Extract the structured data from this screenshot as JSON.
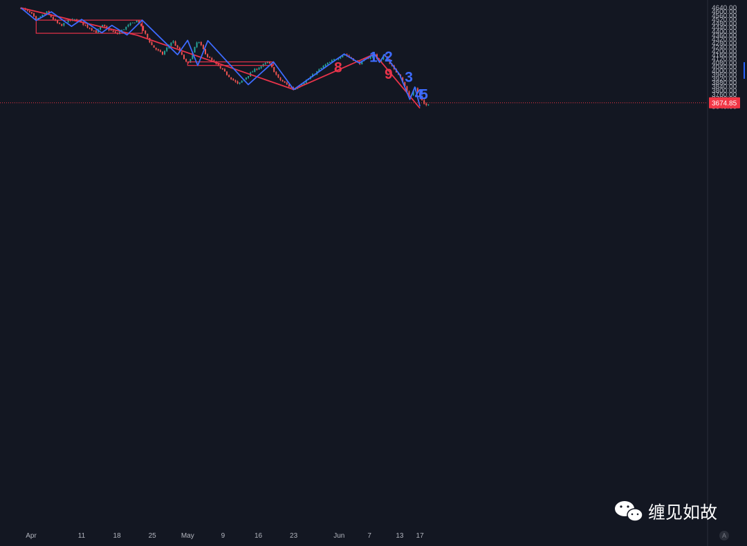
{
  "watermark": {
    "text": "缠见如故",
    "icon": "wechat-icon"
  },
  "axis_mode": "A",
  "colors": {
    "background": "#131722",
    "up": "#26a69a",
    "down": "#ef5350",
    "red_line": "#e8334a",
    "blue_line": "#3d6bff",
    "price_label": "#f23645",
    "label_red": "#e8334a",
    "label_blue": "#3d6bff"
  },
  "chart_data": {
    "type": "candlestick",
    "title": "",
    "ylabel": "",
    "y_ticks": [
      3640,
      3680,
      3720,
      3760,
      3800,
      3840,
      3880,
      3920,
      3960,
      4000,
      4040,
      4080,
      4120,
      4160,
      4200,
      4240,
      4280,
      4320,
      4360,
      4400,
      4440,
      4480,
      4520,
      4560,
      4600,
      4640
    ],
    "x_ticks": [
      {
        "label": "Apr",
        "x": "2022-04-01"
      },
      {
        "label": "11",
        "x": "2022-04-11"
      },
      {
        "label": "18",
        "x": "2022-04-18"
      },
      {
        "label": "25",
        "x": "2022-04-25"
      },
      {
        "label": "May",
        "x": "2022-05-02"
      },
      {
        "label": "9",
        "x": "2022-05-09"
      },
      {
        "label": "16",
        "x": "2022-05-16"
      },
      {
        "label": "23",
        "x": "2022-05-23"
      },
      {
        "label": "Jun",
        "x": "2022-06-01"
      },
      {
        "label": "7",
        "x": "2022-06-07"
      },
      {
        "label": "13",
        "x": "2022-06-13"
      },
      {
        "label": "17",
        "x": "2022-06-17"
      }
    ],
    "last_price": {
      "label": "3674.85",
      "value": 3674.85
    },
    "price_path": [
      [
        "2022-03-30",
        4637
      ],
      [
        "2022-04-01",
        4580
      ],
      [
        "2022-04-02",
        4510
      ],
      [
        "2022-04-04",
        4597
      ],
      [
        "2022-04-06",
        4490
      ],
      [
        "2022-04-07",
        4450
      ],
      [
        "2022-04-08",
        4505
      ],
      [
        "2022-04-10",
        4520
      ],
      [
        "2022-04-12",
        4450
      ],
      [
        "2022-04-14",
        4390
      ],
      [
        "2022-04-15",
        4460
      ],
      [
        "2022-04-18",
        4370
      ],
      [
        "2022-04-20",
        4450
      ],
      [
        "2022-04-22",
        4513
      ],
      [
        "2022-04-25",
        4250
      ],
      [
        "2022-04-27",
        4166
      ],
      [
        "2022-04-29",
        4307
      ],
      [
        "2022-05-02",
        4060
      ],
      [
        "2022-05-04",
        4305
      ],
      [
        "2022-05-06",
        4140
      ],
      [
        "2022-05-09",
        4000
      ],
      [
        "2022-05-12",
        3860
      ],
      [
        "2022-05-15",
        4000
      ],
      [
        "2022-05-18",
        4090
      ],
      [
        "2022-05-20",
        3920
      ],
      [
        "2022-05-23",
        3810
      ],
      [
        "2022-05-26",
        3920
      ],
      [
        "2022-05-29",
        4050
      ],
      [
        "2022-06-02",
        4170
      ],
      [
        "2022-06-05",
        4075
      ],
      [
        "2022-06-08",
        4170
      ],
      [
        "2022-06-09",
        4085
      ],
      [
        "2022-06-10",
        4165
      ],
      [
        "2022-06-12",
        4000
      ],
      [
        "2022-06-13",
        3960
      ],
      [
        "2022-06-15",
        3720
      ],
      [
        "2022-06-16",
        3835
      ],
      [
        "2022-06-18",
        3640
      ],
      [
        "2022-06-19",
        3680
      ]
    ],
    "series": [
      {
        "color": "#e8334a",
        "points": [
          [
            "2022-03-30",
            4637
          ],
          [
            "2022-04-22",
            4360
          ],
          [
            "2022-05-23",
            3810
          ],
          [
            "2022-06-08",
            4170
          ],
          [
            "2022-06-17",
            3620
          ]
        ]
      },
      {
        "color": "#3d6bff",
        "points": [
          [
            "2022-03-30",
            4637
          ],
          [
            "2022-04-02",
            4510
          ],
          [
            "2022-04-05",
            4597
          ],
          [
            "2022-04-09",
            4450
          ],
          [
            "2022-04-11",
            4520
          ],
          [
            "2022-04-15",
            4385
          ],
          [
            "2022-04-17",
            4460
          ],
          [
            "2022-04-20",
            4363
          ],
          [
            "2022-04-23",
            4513
          ],
          [
            "2022-04-30",
            4163
          ],
          [
            "2022-05-02",
            4308
          ],
          [
            "2022-05-04",
            4054
          ],
          [
            "2022-05-06",
            4305
          ],
          [
            "2022-05-14",
            3860
          ],
          [
            "2022-05-19",
            4090
          ],
          [
            "2022-05-23",
            3810
          ],
          [
            "2022-06-02",
            4170
          ],
          [
            "2022-06-05",
            4078
          ],
          [
            "2022-06-08",
            4170
          ],
          [
            "2022-06-09",
            4085
          ],
          [
            "2022-06-10",
            4165
          ],
          [
            "2022-06-13",
            3960
          ],
          [
            "2022-06-15",
            3710
          ],
          [
            "2022-06-16",
            3835
          ],
          [
            "2022-06-17",
            3640
          ]
        ]
      }
    ],
    "boxes": [
      {
        "x0": "2022-04-02",
        "x1": "2022-04-23",
        "y0": 4380,
        "y1": 4513
      },
      {
        "x0": "2022-05-02",
        "x1": "2022-05-19",
        "y0": 4054,
        "y1": 4090
      }
    ],
    "wave_labels": [
      {
        "text": "8",
        "x": "2022-05-31",
        "y": 3985,
        "color": "#e8334a"
      },
      {
        "text": "9",
        "x": "2022-06-10",
        "y": 3920,
        "color": "#e8334a"
      },
      {
        "text": "1",
        "x": "2022-06-07",
        "y": 4090,
        "color": "#3d6bff"
      },
      {
        "text": "2",
        "x": "2022-06-10",
        "y": 4095,
        "color": "#3d6bff"
      },
      {
        "text": "3",
        "x": "2022-06-14",
        "y": 3888,
        "color": "#3d6bff"
      },
      {
        "text": "4",
        "x": "2022-06-16",
        "y": 3712,
        "color": "#3d6bff"
      },
      {
        "text": "5",
        "x": "2022-06-17",
        "y": 3712,
        "color": "#3d6bff"
      }
    ]
  }
}
